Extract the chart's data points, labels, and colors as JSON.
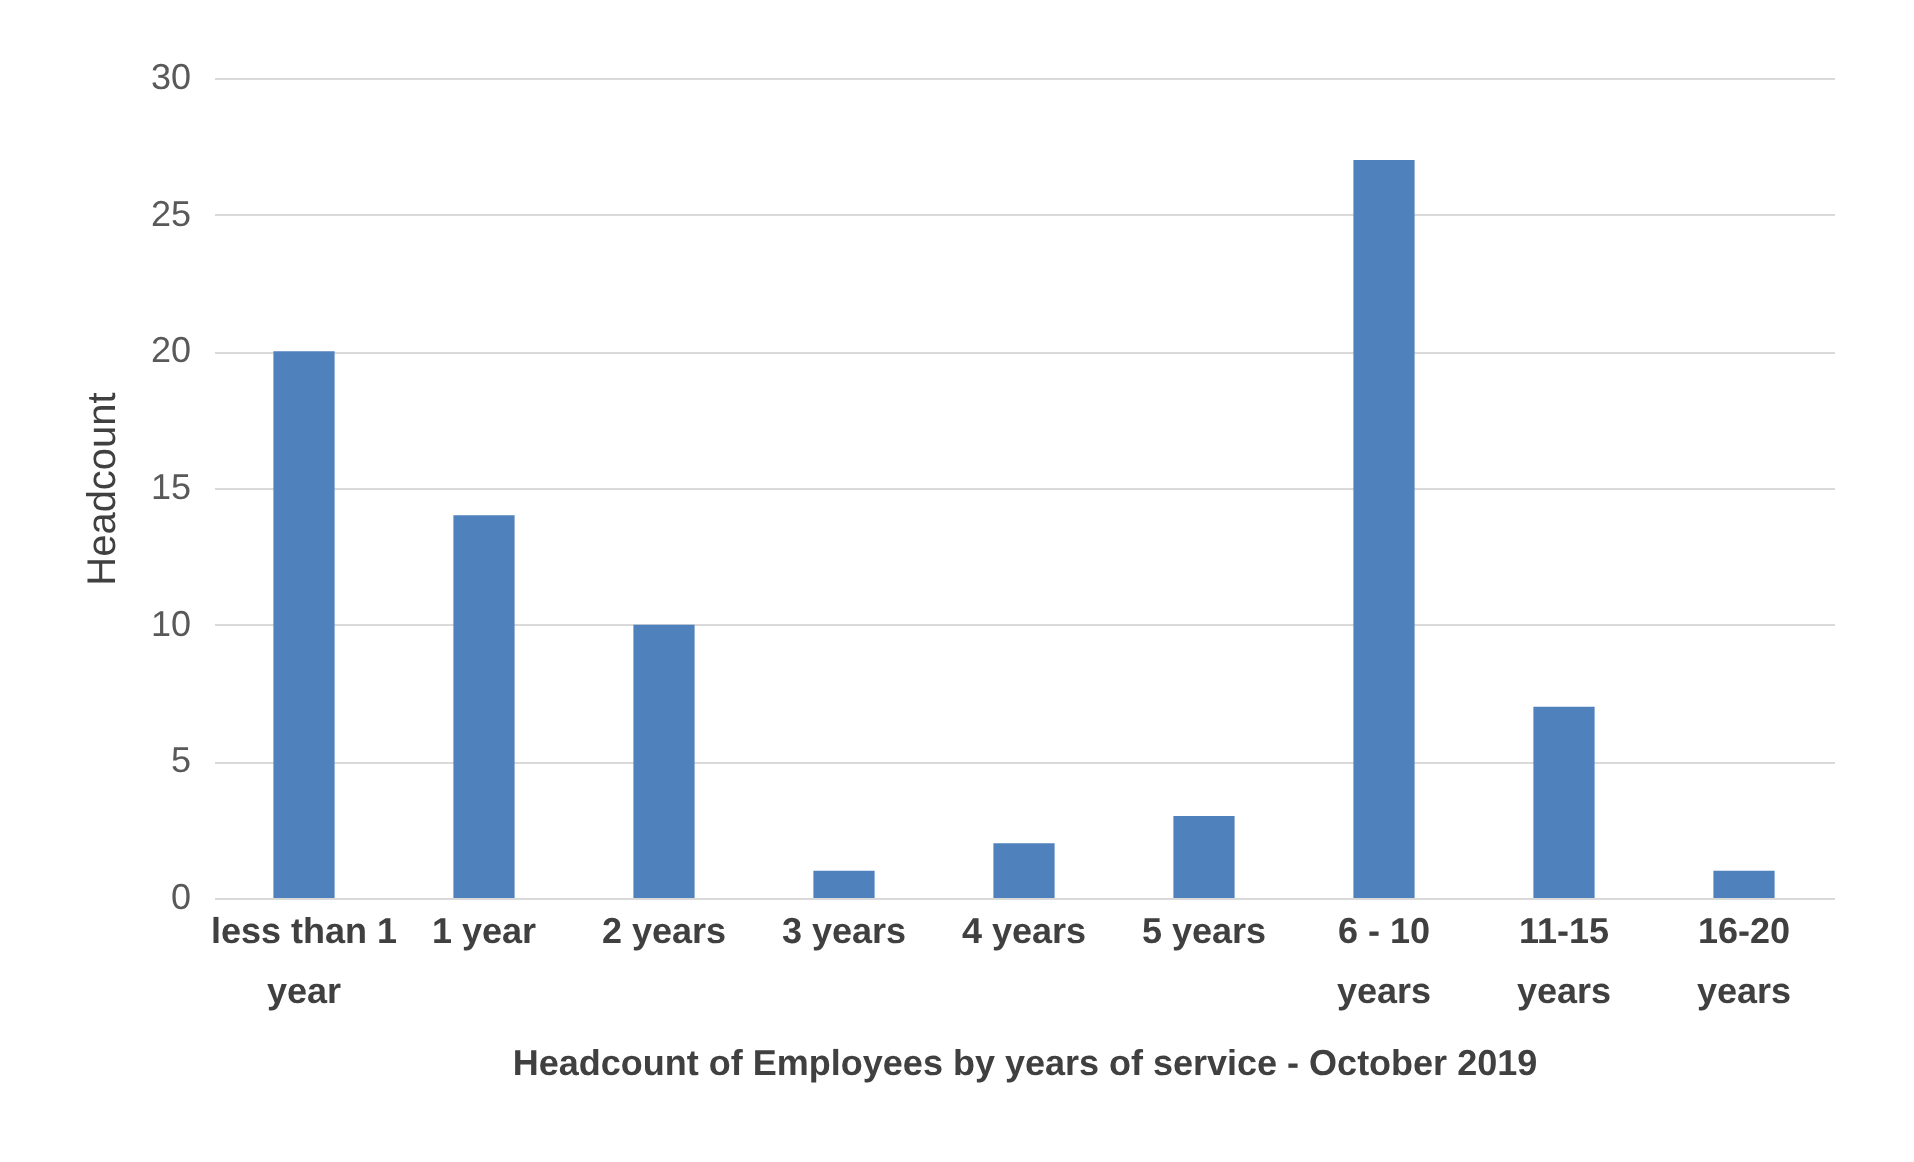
{
  "chart_data": {
    "type": "bar",
    "xlabel": "Headcount of Employees by years of service - October 2019",
    "ylabel": "Headcount",
    "categories": [
      "less than 1 year",
      "1 year",
      "2 years",
      "3 years",
      "4 years",
      "5 years",
      "6 - 10 years",
      "11-15 years",
      "16-20 years"
    ],
    "values": [
      20,
      14,
      10,
      1,
      2,
      3,
      27,
      7,
      1
    ],
    "color": "#4f81bd",
    "ylim": [
      0,
      30
    ],
    "yticks": [
      0,
      5,
      10,
      15,
      20,
      25,
      30
    ],
    "grid": "y"
  }
}
